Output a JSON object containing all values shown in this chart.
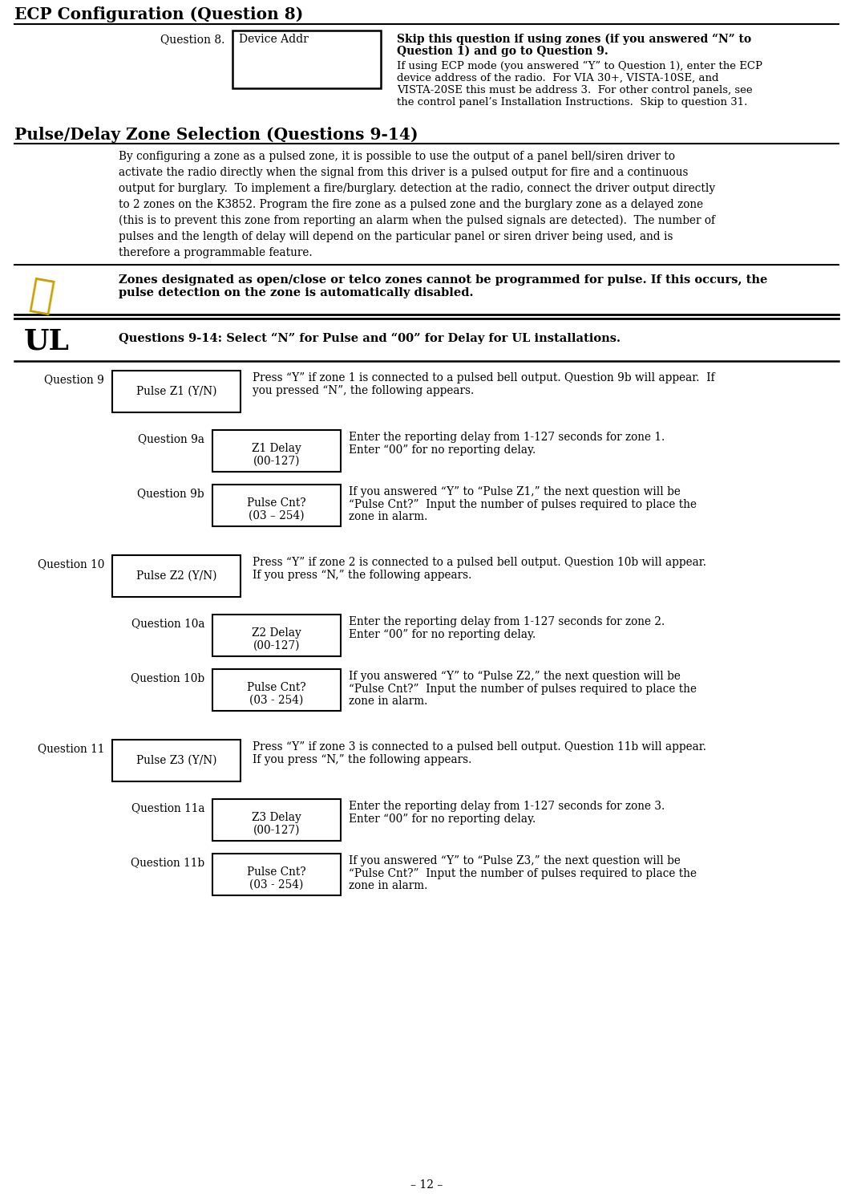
{
  "page_number": "– 12 –",
  "title1": "ECP Configuration (Question 8)",
  "section2_title": "Pulse/Delay Zone Selection (Questions 9-14)",
  "bg_color": "#ffffff",
  "q8_label": "Question 8.",
  "q8_box_text": "Device Addr",
  "q8_bold_line1": "Skip this question if using zones (if you answered “N” to",
  "q8_bold_line2": "Question 1) and go to Question 9.",
  "q8_normal_text": "If using ECP mode (you answered “Y” to Question 1), enter the ECP\ndevice address of the radio.  For VIA 30+, VISTA-10SE, and\nVISTA-20SE this must be address 3.  For other control panels, see\nthe control panel’s Installation Instructions.  Skip to question 31.",
  "pulse_delay_body_lines": [
    "By configuring a zone as a pulsed zone, it is possible to use the output of a panel bell/siren driver to",
    "activate the radio directly when the signal from this driver is a pulsed output for fire and a continuous",
    "output for burglary.  To implement a fire/burglary. detection at the radio, connect the driver output directly",
    "to 2 zones on the K3852. Program the fire zone as a pulsed zone and the burglary zone as a delayed zone",
    "(this is to prevent this zone from reporting an alarm when the pulsed signals are detected).  The number of",
    "pulses and the length of delay will depend on the particular panel or siren driver being used, and is",
    "therefore a programmable feature."
  ],
  "checkmark_note_line1": "Zones designated as open/close or telco zones cannot be programmed for pulse. If this occurs, the",
  "checkmark_note_line2": "pulse detection on the zone is automatically disabled.",
  "ul_label": "UL",
  "ul_note": "Questions 9-14: Select “N” for Pulse and “00” for Delay for UL installations.",
  "questions": [
    {
      "id": "Question 9",
      "box_text": "Pulse Z1 (Y/N)",
      "desc_line1": "Press “Y” if zone 1 is connected to a pulsed bell output. Question 9b will appear.  If",
      "desc_line2": "you pressed “N”, the following appears.",
      "sub": [
        {
          "id": "Question 9a",
          "box_line1": "Z1 Delay",
          "box_line2": "(00-127)",
          "desc_line1": "Enter the reporting delay from 1-127 seconds for zone 1.",
          "desc_line2": "Enter “00” for no reporting delay.",
          "desc_line3": ""
        },
        {
          "id": "Question 9b",
          "box_line1": "Pulse Cnt?",
          "box_line2": "(03 – 254)",
          "desc_line1": "If you answered “Y” to “Pulse Z1,” the next question will be",
          "desc_line2": "“Pulse Cnt?”  Input the number of pulses required to place the",
          "desc_line3": "zone in alarm."
        }
      ]
    },
    {
      "id": "Question 10",
      "box_text": "Pulse Z2 (Y/N)",
      "desc_line1": "Press “Y” if zone 2 is connected to a pulsed bell output. Question 10b will appear.",
      "desc_line2": "If you press “N,” the following appears.",
      "sub": [
        {
          "id": "Question 10a",
          "box_line1": "Z2 Delay",
          "box_line2": "(00-127)",
          "desc_line1": "Enter the reporting delay from 1-127 seconds for zone 2.",
          "desc_line2": "Enter “00” for no reporting delay.",
          "desc_line3": ""
        },
        {
          "id": "Question 10b",
          "box_line1": "Pulse Cnt?",
          "box_line2": "(03 - 254)",
          "desc_line1": "If you answered “Y” to “Pulse Z2,” the next question will be",
          "desc_line2": "“Pulse Cnt?”  Input the number of pulses required to place the",
          "desc_line3": "zone in alarm."
        }
      ]
    },
    {
      "id": "Question 11",
      "box_text": "Pulse Z3 (Y/N)",
      "desc_line1": "Press “Y” if zone 3 is connected to a pulsed bell output. Question 11b will appear.",
      "desc_line2": "If you press “N,” the following appears.",
      "sub": [
        {
          "id": "Question 11a",
          "box_line1": "Z3 Delay",
          "box_line2": "(00-127)",
          "desc_line1": "Enter the reporting delay from 1-127 seconds for zone 3.",
          "desc_line2": "Enter “00” for no reporting delay.",
          "desc_line3": ""
        },
        {
          "id": "Question 11b",
          "box_line1": "Pulse Cnt?",
          "box_line2": "(03 - 254)",
          "desc_line1": "If you answered “Y” to “Pulse Z3,” the next question will be",
          "desc_line2": "“Pulse Cnt?”  Input the number of pulses required to place the",
          "desc_line3": "zone in alarm."
        }
      ]
    }
  ]
}
